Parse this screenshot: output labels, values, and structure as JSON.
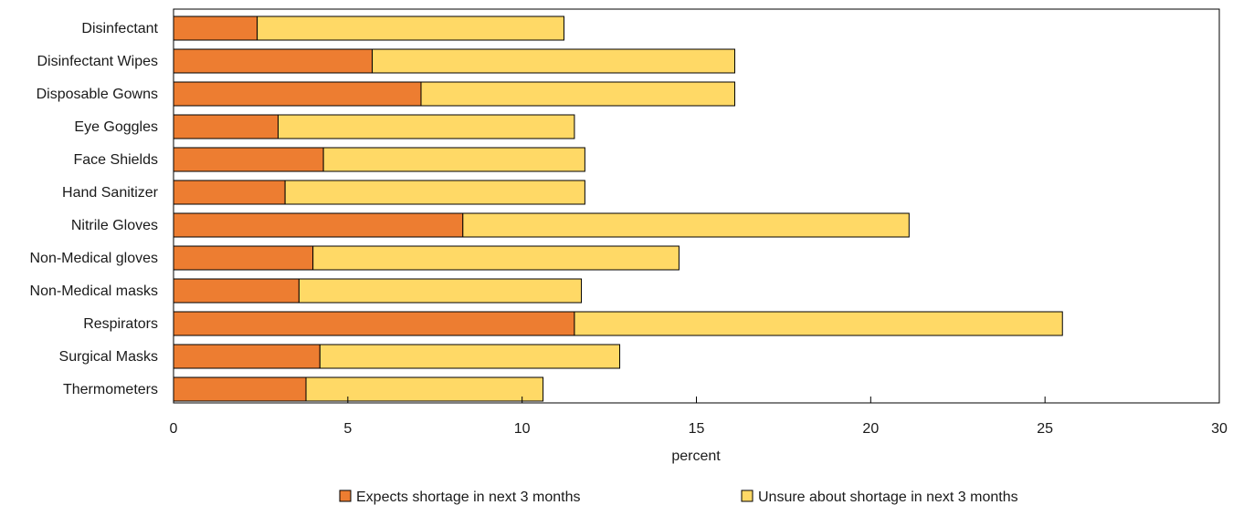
{
  "chart_data": {
    "type": "bar",
    "orientation": "horizontal",
    "stacked": true,
    "categories": [
      "Disinfectant",
      "Disinfectant Wipes",
      "Disposable Gowns",
      "Eye Goggles",
      "Face Shields",
      "Hand Sanitizer",
      "Nitrile Gloves",
      "Non-Medical gloves",
      "Non-Medical masks",
      "Respirators",
      "Surgical Masks",
      "Thermometers"
    ],
    "series": [
      {
        "name": "Expects shortage in next 3 months",
        "color": "#ed7d31",
        "values": [
          2.4,
          5.7,
          7.1,
          3.0,
          4.3,
          3.2,
          8.3,
          4.0,
          3.6,
          11.5,
          4.2,
          3.8
        ]
      },
      {
        "name": "Unsure about shortage in next 3 months",
        "color": "#ffd966",
        "values": [
          8.8,
          10.4,
          9.0,
          8.5,
          7.5,
          8.6,
          12.8,
          10.5,
          8.1,
          14.0,
          8.6,
          6.8
        ]
      }
    ],
    "xlabel": "percent",
    "ylabel": "",
    "xlim": [
      0,
      30
    ],
    "xticks": [
      "0",
      "5",
      "10",
      "15",
      "20",
      "25",
      "30"
    ],
    "grid": false,
    "legend_position": "bottom"
  }
}
